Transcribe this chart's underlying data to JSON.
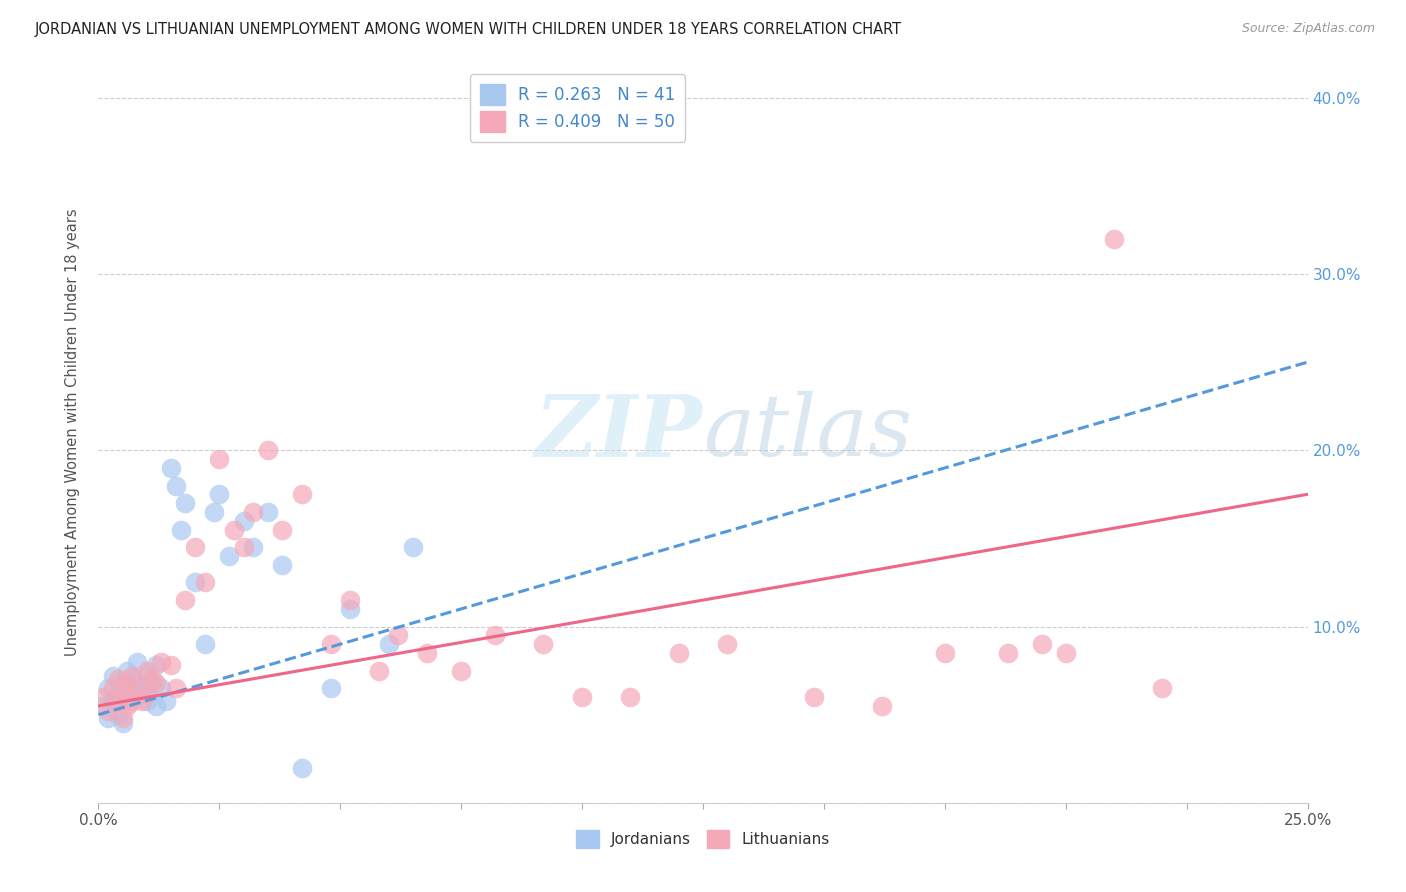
{
  "title": "JORDANIAN VS LITHUANIAN UNEMPLOYMENT AMONG WOMEN WITH CHILDREN UNDER 18 YEARS CORRELATION CHART",
  "source": "Source: ZipAtlas.com",
  "ylabel": "Unemployment Among Women with Children Under 18 years",
  "x_min": 0.0,
  "x_max": 0.25,
  "y_min": 0.0,
  "y_max": 0.42,
  "x_ticks": [
    0.0,
    0.025,
    0.05,
    0.075,
    0.1,
    0.125,
    0.15,
    0.175,
    0.2,
    0.225,
    0.25
  ],
  "x_tick_labels_show": [
    "0.0%",
    "",
    "",
    "",
    "",
    "",
    "",
    "",
    "",
    "",
    "25.0%"
  ],
  "y_ticks": [
    0.0,
    0.1,
    0.2,
    0.3,
    0.4
  ],
  "y_tick_labels_right": [
    "",
    "10.0%",
    "20.0%",
    "30.0%",
    "40.0%"
  ],
  "legend_labels": [
    "Jordanians",
    "Lithuanians"
  ],
  "r_jordan": 0.263,
  "n_jordan": 41,
  "r_lithu": 0.409,
  "n_lithu": 50,
  "color_jordan": "#a8c8f0",
  "color_lithu": "#f4a8b8",
  "line_color_jordan": "#5599dd",
  "line_color_lithu": "#ee6688",
  "jordan_line_start_y": 0.05,
  "jordan_line_end_y": 0.25,
  "lithu_line_start_y": 0.055,
  "lithu_line_end_y": 0.175,
  "jordan_points_x": [
    0.001,
    0.002,
    0.002,
    0.003,
    0.003,
    0.004,
    0.004,
    0.005,
    0.005,
    0.006,
    0.006,
    0.007,
    0.007,
    0.008,
    0.008,
    0.009,
    0.01,
    0.01,
    0.011,
    0.012,
    0.012,
    0.013,
    0.014,
    0.015,
    0.016,
    0.017,
    0.018,
    0.02,
    0.022,
    0.024,
    0.025,
    0.027,
    0.03,
    0.032,
    0.035,
    0.038,
    0.042,
    0.048,
    0.052,
    0.06,
    0.065
  ],
  "jordan_points_y": [
    0.055,
    0.048,
    0.065,
    0.058,
    0.072,
    0.062,
    0.05,
    0.068,
    0.045,
    0.06,
    0.075,
    0.058,
    0.07,
    0.065,
    0.08,
    0.062,
    0.072,
    0.058,
    0.068,
    0.078,
    0.055,
    0.065,
    0.058,
    0.19,
    0.18,
    0.155,
    0.17,
    0.125,
    0.09,
    0.165,
    0.175,
    0.14,
    0.16,
    0.145,
    0.165,
    0.135,
    0.02,
    0.065,
    0.11,
    0.09,
    0.145
  ],
  "lithu_points_x": [
    0.001,
    0.002,
    0.003,
    0.004,
    0.004,
    0.005,
    0.005,
    0.006,
    0.006,
    0.007,
    0.007,
    0.008,
    0.009,
    0.01,
    0.01,
    0.011,
    0.012,
    0.013,
    0.015,
    0.016,
    0.018,
    0.02,
    0.022,
    0.025,
    0.028,
    0.03,
    0.032,
    0.035,
    0.038,
    0.042,
    0.048,
    0.052,
    0.058,
    0.062,
    0.068,
    0.075,
    0.082,
    0.092,
    0.1,
    0.11,
    0.12,
    0.13,
    0.148,
    0.162,
    0.175,
    0.188,
    0.195,
    0.2,
    0.21,
    0.22
  ],
  "lithu_points_y": [
    0.06,
    0.052,
    0.065,
    0.058,
    0.07,
    0.062,
    0.048,
    0.068,
    0.055,
    0.058,
    0.072,
    0.065,
    0.058,
    0.075,
    0.062,
    0.07,
    0.068,
    0.08,
    0.078,
    0.065,
    0.115,
    0.145,
    0.125,
    0.195,
    0.155,
    0.145,
    0.165,
    0.2,
    0.155,
    0.175,
    0.09,
    0.115,
    0.075,
    0.095,
    0.085,
    0.075,
    0.095,
    0.09,
    0.06,
    0.06,
    0.085,
    0.09,
    0.06,
    0.055,
    0.085,
    0.085,
    0.09,
    0.085,
    0.32,
    0.065
  ]
}
